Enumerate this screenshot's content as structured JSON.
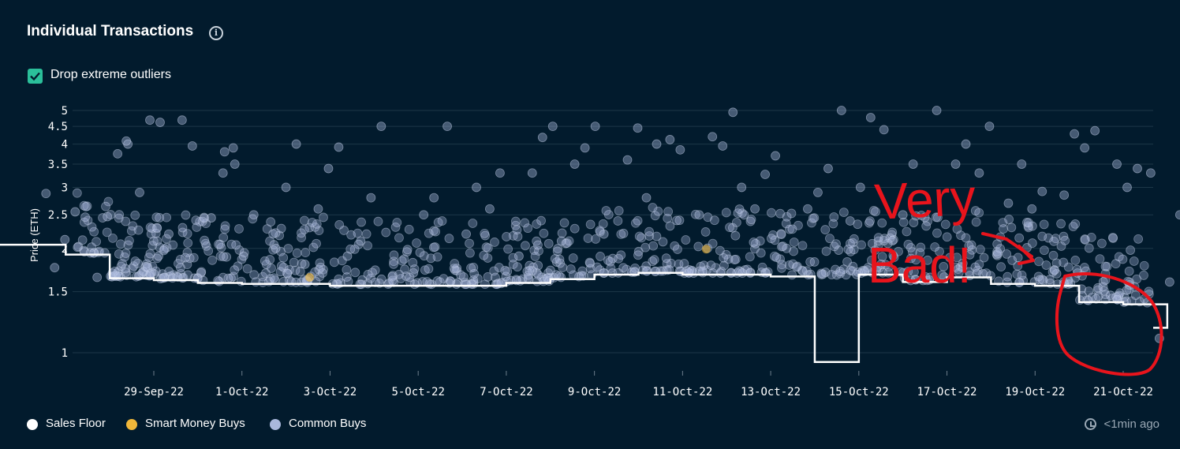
{
  "header": {
    "title": "Individual Transactions",
    "info_icon": "info-icon"
  },
  "options": {
    "drop_outliers_label": "Drop extreme outliers",
    "drop_outliers_checked": true
  },
  "legend": {
    "sales_floor": {
      "label": "Sales Floor",
      "color": "#ffffff"
    },
    "smart_money": {
      "label": "Smart Money Buys",
      "color": "#f0b73a"
    },
    "common_buys": {
      "label": "Common Buys",
      "color": "#a9b8dc"
    }
  },
  "status": {
    "updated": "<1min ago"
  },
  "annotation": {
    "text_line1": "Very",
    "text_line2": "Bad!",
    "color": "#e8141c"
  },
  "chart_data": {
    "type": "scatter",
    "ylabel": "Price (ETH)",
    "yscale": "log",
    "yticks": [
      1,
      1.5,
      2,
      2.5,
      3,
      3.5,
      4,
      4.5,
      5
    ],
    "ytick_labels": [
      "1",
      "1.5",
      "2",
      "2.5",
      "3",
      "3.5",
      "4",
      "4.5",
      "5"
    ],
    "xticks": [
      "29-Sep-22",
      "1-Oct-22",
      "3-Oct-22",
      "5-Oct-22",
      "7-Oct-22",
      "9-Oct-22",
      "11-Oct-22",
      "13-Oct-22",
      "15-Oct-22",
      "17-Oct-22",
      "19-Oct-22",
      "21-Oct-22"
    ],
    "xrange": [
      "2022-09-27",
      "2022-10-22"
    ],
    "grid": true,
    "legend_position": "bottom-left",
    "series": [
      {
        "name": "Sales Floor",
        "type": "step-line",
        "points": [
          [
            "2022-09-27",
            2.05
          ],
          [
            "2022-09-27",
            1.92
          ],
          [
            "2022-09-28",
            1.78
          ],
          [
            "2022-09-28",
            1.64
          ],
          [
            "2022-09-29",
            1.62
          ],
          [
            "2022-09-30",
            1.59
          ],
          [
            "2022-10-01",
            1.58
          ],
          [
            "2022-10-03",
            1.56
          ],
          [
            "2022-10-05",
            1.56
          ],
          [
            "2022-10-07",
            1.59
          ],
          [
            "2022-10-08",
            1.63
          ],
          [
            "2022-10-09",
            1.68
          ],
          [
            "2022-10-10",
            1.7
          ],
          [
            "2022-10-11",
            1.68
          ],
          [
            "2022-10-13",
            1.66
          ],
          [
            "2022-10-14",
            1.66
          ],
          [
            "2022-10-14",
            0.94
          ],
          [
            "2022-10-15",
            0.94
          ],
          [
            "2022-10-15",
            1.68
          ],
          [
            "2022-10-16",
            1.6
          ],
          [
            "2022-10-17",
            1.65
          ],
          [
            "2022-10-18",
            1.58
          ],
          [
            "2022-10-19",
            1.56
          ],
          [
            "2022-10-20",
            1.56
          ],
          [
            "2022-10-20",
            1.4
          ],
          [
            "2022-10-21",
            1.38
          ],
          [
            "2022-10-22",
            1.18
          ]
        ]
      },
      {
        "name": "Smart Money Buys",
        "points": [
          [
            "2022-10-02",
            1.65
          ],
          [
            "2022-10-11",
            1.99
          ]
        ]
      },
      {
        "name": "Common Buys",
        "points": [
          [
            "2022-09-27",
            2.88
          ],
          [
            "2022-09-27",
            2.55
          ],
          [
            "2022-09-27",
            2.12
          ],
          [
            "2022-09-27",
            1.76
          ],
          [
            "2022-09-28",
            4.0
          ],
          [
            "2022-09-28",
            3.75
          ],
          [
            "2022-09-28",
            2.47
          ],
          [
            "2022-09-28",
            1.65
          ],
          [
            "2022-09-28",
            4.08
          ],
          [
            "2022-09-29",
            4.62
          ],
          [
            "2022-09-29",
            4.69
          ],
          [
            "2022-09-29",
            2.9
          ],
          [
            "2022-09-29",
            2.2
          ],
          [
            "2022-09-29",
            1.9
          ],
          [
            "2022-09-30",
            3.95
          ],
          [
            "2022-09-30",
            4.69
          ],
          [
            "2022-09-30",
            2.45
          ],
          [
            "2022-09-30",
            1.7
          ],
          [
            "2022-10-01",
            3.5
          ],
          [
            "2022-10-01",
            3.8
          ],
          [
            "2022-10-01",
            2.5
          ],
          [
            "2022-10-01",
            1.9
          ],
          [
            "2022-10-01",
            3.9
          ],
          [
            "2022-10-01",
            3.3
          ],
          [
            "2022-10-02",
            4.0
          ],
          [
            "2022-10-02",
            3.0
          ],
          [
            "2022-10-02",
            2.0
          ],
          [
            "2022-10-02",
            1.8
          ],
          [
            "2022-10-03",
            3.92
          ],
          [
            "2022-10-03",
            3.4
          ],
          [
            "2022-10-03",
            2.6
          ],
          [
            "2022-10-03",
            1.9
          ],
          [
            "2022-10-04",
            4.5
          ],
          [
            "2022-10-04",
            2.8
          ],
          [
            "2022-10-04",
            2.1
          ],
          [
            "2022-10-05",
            2.8
          ],
          [
            "2022-10-05",
            2.5
          ],
          [
            "2022-10-05",
            1.7
          ],
          [
            "2022-10-06",
            4.5
          ],
          [
            "2022-10-06",
            3.0
          ],
          [
            "2022-10-06",
            2.2
          ],
          [
            "2022-10-07",
            3.3
          ],
          [
            "2022-10-07",
            2.6
          ],
          [
            "2022-10-07",
            1.9
          ],
          [
            "2022-10-08",
            4.5
          ],
          [
            "2022-10-08",
            4.18
          ],
          [
            "2022-10-08",
            3.3
          ],
          [
            "2022-10-08",
            2.1
          ],
          [
            "2022-10-09",
            4.5
          ],
          [
            "2022-10-09",
            3.9
          ],
          [
            "2022-10-09",
            3.5
          ],
          [
            "2022-10-09",
            2.2
          ],
          [
            "2022-10-10",
            4.45
          ],
          [
            "2022-10-10",
            3.6
          ],
          [
            "2022-10-10",
            4.0
          ],
          [
            "2022-10-10",
            2.8
          ],
          [
            "2022-10-11",
            3.85
          ],
          [
            "2022-10-11",
            4.12
          ],
          [
            "2022-10-11",
            2.5
          ],
          [
            "2022-10-12",
            4.94
          ],
          [
            "2022-10-12",
            3.95
          ],
          [
            "2022-10-12",
            4.2
          ],
          [
            "2022-10-12",
            3.0
          ],
          [
            "2022-10-13",
            3.7
          ],
          [
            "2022-10-13",
            3.27
          ],
          [
            "2022-10-13",
            2.6
          ],
          [
            "2022-10-14",
            3.4
          ],
          [
            "2022-10-14",
            2.9
          ],
          [
            "2022-10-14",
            2.6
          ],
          [
            "2022-10-15",
            5.0
          ],
          [
            "2022-10-15",
            4.77
          ],
          [
            "2022-10-15",
            3.0
          ],
          [
            "2022-10-15",
            2.4
          ],
          [
            "2022-10-16",
            4.4
          ],
          [
            "2022-10-16",
            3.5
          ],
          [
            "2022-10-16",
            2.5
          ],
          [
            "2022-10-17",
            5.0
          ],
          [
            "2022-10-17",
            4.0
          ],
          [
            "2022-10-17",
            3.5
          ],
          [
            "2022-10-18",
            4.5
          ],
          [
            "2022-10-18",
            3.3
          ],
          [
            "2022-10-18",
            2.7
          ],
          [
            "2022-10-19",
            2.92
          ],
          [
            "2022-10-19",
            2.6
          ],
          [
            "2022-10-19",
            3.5
          ],
          [
            "2022-10-20",
            4.37
          ],
          [
            "2022-10-20",
            3.9
          ],
          [
            "2022-10-20",
            4.28
          ],
          [
            "2022-10-20",
            2.85
          ],
          [
            "2022-10-21",
            3.4
          ],
          [
            "2022-10-21",
            3.0
          ],
          [
            "2022-10-21",
            3.5
          ],
          [
            "2022-10-22",
            3.3
          ],
          [
            "2022-10-22",
            2.5
          ],
          [
            "2022-10-22",
            1.6
          ],
          [
            "2022-10-22",
            1.1
          ]
        ]
      }
    ]
  }
}
